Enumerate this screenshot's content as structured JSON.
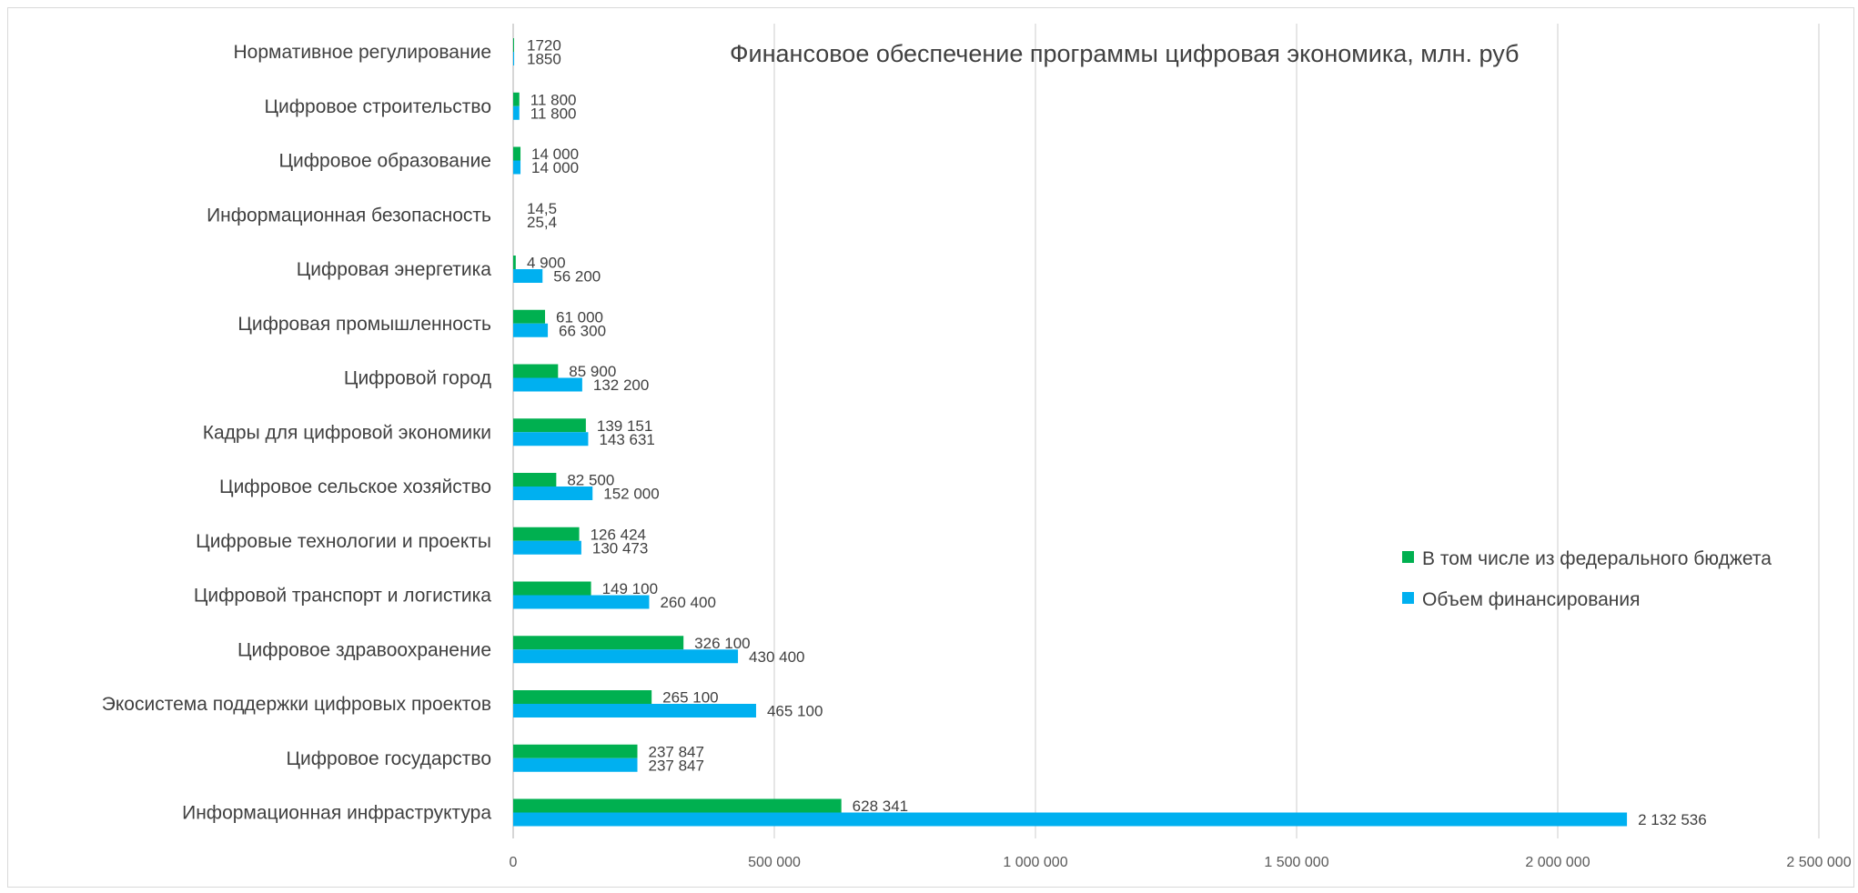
{
  "chart_data": {
    "type": "bar",
    "orientation": "horizontal",
    "title": "Финансовое обеспечение  программы цифровая экономика, млн. руб",
    "xlim": [
      0,
      2500000
    ],
    "grid": true,
    "legend_position": "right",
    "x_ticks": [
      {
        "value": 0,
        "label": "0"
      },
      {
        "value": 500000,
        "label": "500 000"
      },
      {
        "value": 1000000,
        "label": "1 000 000"
      },
      {
        "value": 1500000,
        "label": "1 500 000"
      },
      {
        "value": 2000000,
        "label": "2 000 000"
      },
      {
        "value": 2500000,
        "label": "2 500 000"
      }
    ],
    "categories": [
      "Нормативное регулирование",
      "Цифровое строительство",
      "Цифровое образование",
      "Информационная безопасность",
      "Цифровая энергетика",
      "Цифровая промышленность",
      "Цифровой город",
      "Кадры для цифровой экономики",
      "Цифровое сельское хозяйство",
      "Цифровые технологии и проекты",
      "Цифровой транспорт и логистика",
      "Цифровое здравоохранение",
      "Экосистема поддержки цифровых проектов",
      "Цифровое государство",
      "Информационная инфраструктура"
    ],
    "series": [
      {
        "name": "В том числе из федерального бюджета",
        "color": "#00b050",
        "values": [
          1720,
          11800,
          14000,
          14.5,
          4900,
          61000,
          85900,
          139151,
          82500,
          126424,
          149100,
          326100,
          265100,
          237847,
          628341
        ],
        "labels": [
          "1720",
          "11 800",
          "14 000",
          "14,5",
          "4 900",
          "61 000",
          "85 900",
          "139 151",
          "82 500",
          "126 424",
          "149 100",
          "326 100",
          "265 100",
          "237 847",
          "628 341"
        ]
      },
      {
        "name": "Объем финансирования",
        "color": "#00b0f0",
        "values": [
          1850,
          11800,
          14000,
          25.4,
          56200,
          66300,
          132200,
          143631,
          152000,
          130473,
          260400,
          430400,
          465100,
          237847,
          2132536
        ],
        "labels": [
          "1850",
          "11 800",
          "14 000",
          "25,4",
          "56 200",
          "66 300",
          "132 200",
          "143 631",
          "152 000",
          "130 473",
          "260 400",
          "430 400",
          "465 100",
          "237 847",
          "2 132 536"
        ]
      }
    ]
  }
}
